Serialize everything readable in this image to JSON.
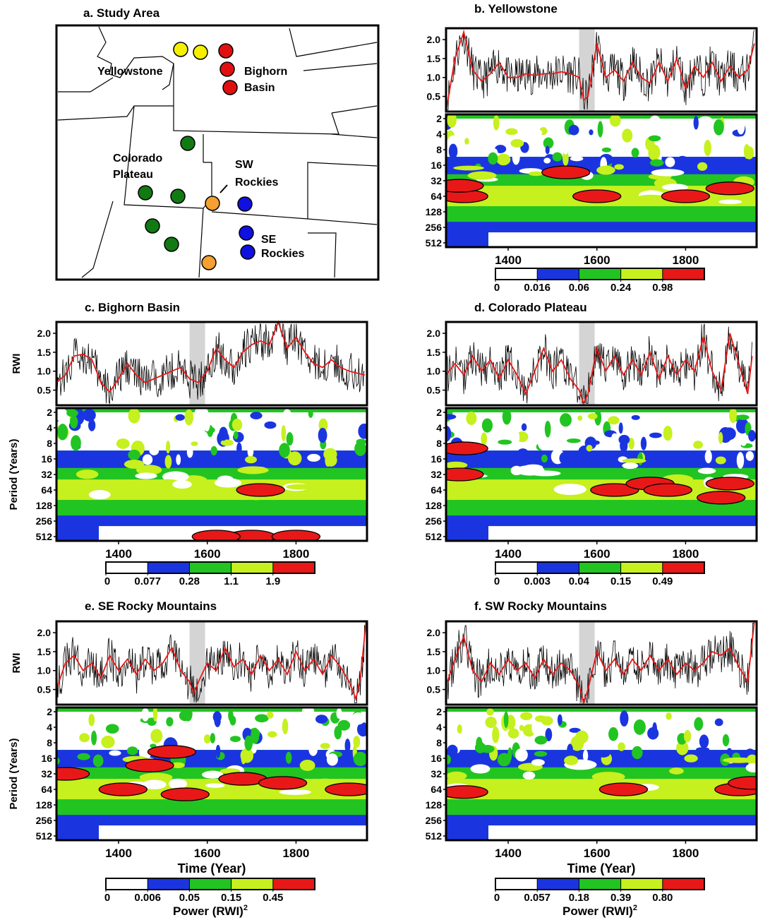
{
  "map": {
    "title": "a. Study Area",
    "labels": [
      "Yellowstone",
      "Bighorn",
      "Basin",
      "Colorado",
      "Plateau",
      "SW",
      "Rockies",
      "SE",
      "Rockies"
    ],
    "site_colors": {
      "Yellowstone": "#f5f000",
      "Bighorn Basin": "#e01010",
      "Colorado Plateau": "#127a12",
      "SW Rockies": "#f5a030",
      "SE Rockies": "#1010e0"
    }
  },
  "common": {
    "x_ticks": [
      1400,
      1600,
      1800
    ],
    "x_range": [
      1260,
      1960
    ],
    "rwi_ticks": [
      "0.5",
      "1.0",
      "1.5",
      "2.0"
    ],
    "rwi_range": [
      0.1,
      2.3
    ],
    "period_ticks": [
      "2",
      "4",
      "8",
      "16",
      "32",
      "64",
      "128",
      "256",
      "512"
    ],
    "colorbar_colors": [
      "#ffffff",
      "#1a35e0",
      "#22c422",
      "#c6f01e",
      "#e81818"
    ],
    "highlight_period": [
      1560,
      1595
    ],
    "series_colors": {
      "raw": "#000000",
      "smoothed": "#e81818"
    }
  },
  "chart_data": [
    {
      "id": "b",
      "type": "line",
      "title": "b. Yellowstone",
      "ylabel": "",
      "period_label": "",
      "xlabel": "",
      "power_label": "",
      "colorbar_values": [
        "0",
        "0.016",
        "0.06",
        "0.24",
        "0.98"
      ],
      "smooth_x": [
        1260,
        1280,
        1300,
        1320,
        1340,
        1360,
        1380,
        1400,
        1420,
        1440,
        1460,
        1480,
        1500,
        1520,
        1540,
        1560,
        1570,
        1580,
        1600,
        1620,
        1640,
        1660,
        1680,
        1700,
        1720,
        1740,
        1760,
        1780,
        1800,
        1820,
        1840,
        1860,
        1880,
        1900,
        1920,
        1940,
        1955
      ],
      "smooth_y": [
        0.1,
        1.5,
        2.2,
        1.2,
        0.9,
        1.1,
        1.4,
        1.0,
        1.0,
        1.1,
        1.05,
        1.1,
        1.1,
        1.15,
        1.1,
        1.0,
        0.4,
        0.5,
        1.9,
        1.0,
        1.2,
        0.9,
        1.4,
        1.0,
        0.85,
        1.4,
        0.9,
        1.5,
        0.7,
        1.3,
        1.0,
        1.4,
        0.9,
        1.3,
        1.0,
        1.2,
        1.9
      ],
      "red_blobs": [
        [
          1300,
          64
        ],
        [
          1600,
          64
        ],
        [
          1800,
          64
        ],
        [
          1900,
          45
        ],
        [
          1290,
          40
        ],
        [
          1530,
          22
        ]
      ]
    },
    {
      "id": "c",
      "type": "line",
      "title": "c. Bighorn Basin",
      "ylabel": "RWI",
      "period_label": "Period (Years)",
      "xlabel": "",
      "power_label": "",
      "colorbar_values": [
        "0",
        "0.077",
        "0.28",
        "1.1",
        "1.9"
      ],
      "smooth_x": [
        1260,
        1280,
        1300,
        1320,
        1340,
        1360,
        1380,
        1400,
        1420,
        1440,
        1460,
        1480,
        1500,
        1520,
        1540,
        1560,
        1580,
        1600,
        1620,
        1640,
        1660,
        1680,
        1700,
        1720,
        1740,
        1760,
        1780,
        1800,
        1820,
        1840,
        1860,
        1880,
        1900,
        1920,
        1955
      ],
      "smooth_y": [
        0.7,
        0.9,
        1.4,
        1.45,
        1.3,
        0.7,
        0.45,
        0.8,
        1.2,
        0.9,
        0.7,
        0.8,
        0.9,
        1.0,
        1.1,
        0.8,
        0.7,
        1.0,
        1.6,
        1.3,
        1.1,
        1.5,
        1.7,
        1.8,
        1.7,
        2.3,
        1.6,
        1.9,
        1.5,
        1.2,
        1.1,
        1.3,
        1.1,
        1.0,
        0.9
      ],
      "red_blobs": [
        [
          1720,
          64
        ],
        [
          1700,
          512
        ],
        [
          1620,
          512
        ],
        [
          1800,
          512
        ]
      ]
    },
    {
      "id": "d",
      "type": "line",
      "title": "d. Colorado Plateau",
      "ylabel": "",
      "period_label": "",
      "xlabel": "",
      "power_label": "",
      "colorbar_values": [
        "0",
        "0.003",
        "0.04",
        "0.15",
        "0.49"
      ],
      "smooth_x": [
        1260,
        1280,
        1300,
        1320,
        1340,
        1360,
        1380,
        1400,
        1420,
        1440,
        1460,
        1480,
        1500,
        1520,
        1540,
        1560,
        1570,
        1580,
        1600,
        1620,
        1640,
        1660,
        1680,
        1700,
        1720,
        1740,
        1760,
        1780,
        1800,
        1820,
        1840,
        1860,
        1880,
        1900,
        1920,
        1940,
        1950
      ],
      "smooth_y": [
        0.9,
        1.2,
        0.9,
        1.4,
        1.0,
        1.3,
        0.8,
        1.3,
        0.9,
        0.4,
        1.0,
        1.6,
        1.0,
        1.3,
        0.8,
        0.5,
        0.15,
        0.4,
        1.6,
        1.0,
        1.4,
        0.9,
        1.3,
        0.9,
        1.5,
        0.8,
        1.4,
        0.9,
        1.3,
        1.0,
        1.9,
        1.0,
        0.5,
        2.0,
        1.2,
        0.4,
        1.4
      ],
      "red_blobs": [
        [
          1300,
          10
        ],
        [
          1640,
          64
        ],
        [
          1720,
          48
        ],
        [
          1760,
          64
        ],
        [
          1880,
          90
        ],
        [
          1900,
          48
        ],
        [
          1290,
          32
        ]
      ]
    },
    {
      "id": "e",
      "type": "line",
      "title": "e. SE Rocky Mountains",
      "ylabel": "RWI",
      "period_label": "Period (Years)",
      "xlabel": "Time (Year)",
      "power_label": "Power (RWI)",
      "colorbar_values": [
        "0",
        "0.006",
        "0.05",
        "0.15",
        "0.45"
      ],
      "smooth_x": [
        1260,
        1280,
        1300,
        1320,
        1340,
        1360,
        1380,
        1400,
        1420,
        1440,
        1460,
        1480,
        1500,
        1520,
        1540,
        1560,
        1570,
        1580,
        1600,
        1620,
        1640,
        1660,
        1680,
        1700,
        1720,
        1740,
        1760,
        1780,
        1800,
        1820,
        1840,
        1860,
        1880,
        1900,
        1920,
        1935,
        1945,
        1958
      ],
      "smooth_y": [
        0.5,
        1.2,
        1.4,
        1.0,
        1.2,
        0.8,
        1.4,
        1.0,
        1.3,
        0.9,
        1.3,
        1.0,
        1.2,
        1.6,
        1.0,
        0.7,
        0.4,
        0.7,
        1.2,
        1.0,
        1.6,
        1.1,
        1.3,
        0.9,
        1.4,
        1.0,
        1.3,
        0.9,
        1.5,
        1.0,
        1.3,
        0.9,
        1.4,
        1.1,
        0.7,
        0.25,
        0.8,
        2.3
      ],
      "red_blobs": [
        [
          1280,
          32
        ],
        [
          1680,
          40
        ],
        [
          1770,
          48
        ],
        [
          1520,
          12
        ],
        [
          1470,
          22
        ],
        [
          1410,
          64
        ],
        [
          1550,
          80
        ],
        [
          1920,
          64
        ]
      ]
    },
    {
      "id": "f",
      "type": "line",
      "title": "f. SW Rocky Mountains",
      "ylabel": "",
      "period_label": "",
      "xlabel": "Time (Year)",
      "power_label": "Power (RWI)",
      "colorbar_values": [
        "0",
        "0.057",
        "0.18",
        "0.39",
        "0.80"
      ],
      "smooth_x": [
        1260,
        1280,
        1300,
        1320,
        1340,
        1360,
        1380,
        1400,
        1420,
        1440,
        1460,
        1480,
        1500,
        1520,
        1540,
        1560,
        1570,
        1580,
        1600,
        1620,
        1640,
        1660,
        1680,
        1700,
        1720,
        1740,
        1760,
        1780,
        1800,
        1820,
        1840,
        1860,
        1880,
        1900,
        1920,
        1940,
        1955
      ],
      "smooth_y": [
        0.6,
        1.3,
        1.9,
        1.0,
        0.7,
        1.2,
        0.9,
        1.3,
        1.0,
        1.2,
        0.8,
        1.3,
        0.9,
        1.2,
        1.0,
        0.6,
        0.15,
        0.5,
        1.5,
        1.0,
        1.3,
        0.9,
        1.3,
        1.0,
        1.4,
        1.0,
        1.3,
        0.9,
        1.2,
        1.0,
        1.2,
        1.5,
        1.4,
        1.6,
        1.1,
        0.7,
        2.3
      ],
      "red_blobs": [
        [
          1300,
          72
        ],
        [
          1660,
          64
        ],
        [
          1920,
          64
        ],
        [
          1950,
          48
        ]
      ]
    }
  ]
}
